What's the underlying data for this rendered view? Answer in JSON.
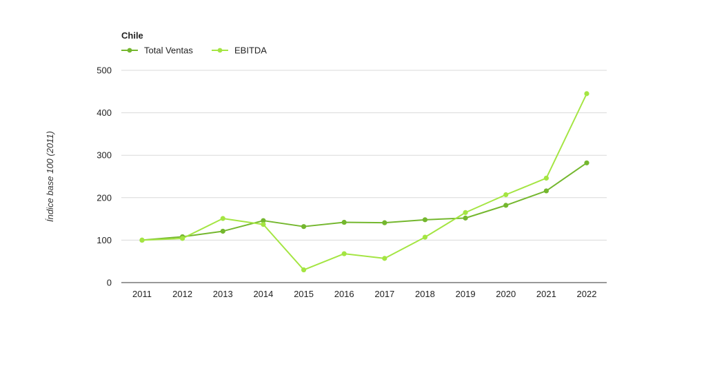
{
  "chart_data": {
    "type": "line",
    "legend_title": "Chile",
    "ylabel": "Índice base 100 (2011)",
    "xlabel": "",
    "categories": [
      "2011",
      "2012",
      "2013",
      "2014",
      "2015",
      "2016",
      "2017",
      "2018",
      "2019",
      "2020",
      "2021",
      "2022"
    ],
    "yticks": [
      "0",
      "100",
      "200",
      "300",
      "400",
      "500"
    ],
    "ylim": [
      0,
      500
    ],
    "grid": true,
    "legend_position": "top-left",
    "series": [
      {
        "name": "Total Ventas",
        "color": "#74b72e",
        "values": [
          100,
          108,
          121,
          146,
          132,
          142,
          141,
          148,
          152,
          182,
          216,
          282
        ]
      },
      {
        "name": "EBITDA",
        "color": "#a4e542",
        "values": [
          100,
          104,
          151,
          137,
          30,
          68,
          57,
          107,
          165,
          207,
          246,
          445
        ]
      }
    ]
  }
}
